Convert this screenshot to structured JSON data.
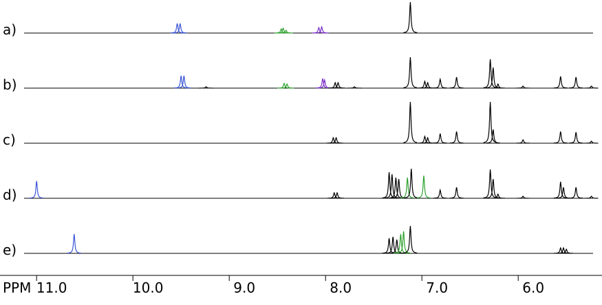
{
  "chart_data": {
    "type": "nmr",
    "xlabel": "PPM",
    "xlim": [
      11.38,
      5.13
    ],
    "xticks": [
      {
        "value": 11,
        "label": "11.0"
      },
      {
        "value": 10,
        "label": "10.0"
      },
      {
        "value": 9,
        "label": "9.0"
      },
      {
        "value": 8,
        "label": "8.0"
      },
      {
        "value": 7,
        "label": "7.0"
      },
      {
        "value": 6,
        "label": "6.0"
      }
    ],
    "ylim": [
      0,
      80
    ],
    "traces": [
      {
        "label": "a)",
        "peaks": [
          {
            "ppm": 9.54,
            "height": 14,
            "color": "#3a55d6"
          },
          {
            "ppm": 9.51,
            "height": 14,
            "color": "#3a55d6"
          },
          {
            "ppm": 8.46,
            "height": 6,
            "color": "#2ea02e"
          },
          {
            "ppm": 8.44,
            "height": 7,
            "color": "#2ea02e"
          },
          {
            "ppm": 8.41,
            "height": 4,
            "color": "#2ea02e"
          },
          {
            "ppm": 8.07,
            "height": 8,
            "color": "#7a2fc8"
          },
          {
            "ppm": 8.04,
            "height": 9,
            "color": "#7a2fc8"
          },
          {
            "ppm": 7.12,
            "height": 45,
            "color": "#000000"
          }
        ]
      },
      {
        "label": "b)",
        "peaks": [
          {
            "ppm": 9.5,
            "height": 18,
            "color": "#3a55d6"
          },
          {
            "ppm": 9.47,
            "height": 18,
            "color": "#3a55d6"
          },
          {
            "ppm": 9.24,
            "height": 2,
            "color": "#000000"
          },
          {
            "ppm": 8.43,
            "height": 7,
            "color": "#2ea02e"
          },
          {
            "ppm": 8.4,
            "height": 6,
            "color": "#2ea02e"
          },
          {
            "ppm": 8.03,
            "height": 14,
            "color": "#7a2fc8"
          },
          {
            "ppm": 8.01,
            "height": 12,
            "color": "#7a2fc8"
          },
          {
            "ppm": 7.9,
            "height": 8,
            "color": "#000000"
          },
          {
            "ppm": 7.87,
            "height": 8,
            "color": "#000000"
          },
          {
            "ppm": 7.7,
            "height": 2,
            "color": "#000000"
          },
          {
            "ppm": 7.12,
            "height": 45,
            "color": "#000000"
          },
          {
            "ppm": 6.97,
            "height": 10,
            "color": "#000000"
          },
          {
            "ppm": 6.94,
            "height": 8,
            "color": "#000000"
          },
          {
            "ppm": 6.81,
            "height": 13,
            "color": "#000000"
          },
          {
            "ppm": 6.64,
            "height": 16,
            "color": "#000000"
          },
          {
            "ppm": 6.29,
            "height": 42,
            "color": "#000000"
          },
          {
            "ppm": 6.26,
            "height": 30,
            "color": "#000000"
          },
          {
            "ppm": 6.21,
            "height": 6,
            "color": "#000000"
          },
          {
            "ppm": 5.95,
            "height": 3,
            "color": "#000000"
          },
          {
            "ppm": 5.56,
            "height": 17,
            "color": "#000000"
          },
          {
            "ppm": 5.4,
            "height": 16,
            "color": "#000000"
          },
          {
            "ppm": 5.24,
            "height": 3,
            "color": "#000000"
          }
        ]
      },
      {
        "label": "c)",
        "peaks": [
          {
            "ppm": 7.92,
            "height": 8,
            "color": "#000000"
          },
          {
            "ppm": 7.89,
            "height": 8,
            "color": "#000000"
          },
          {
            "ppm": 7.12,
            "height": 60,
            "color": "#000000"
          },
          {
            "ppm": 6.97,
            "height": 10,
            "color": "#000000"
          },
          {
            "ppm": 6.94,
            "height": 8,
            "color": "#000000"
          },
          {
            "ppm": 6.81,
            "height": 14,
            "color": "#000000"
          },
          {
            "ppm": 6.64,
            "height": 17,
            "color": "#000000"
          },
          {
            "ppm": 6.29,
            "height": 60,
            "color": "#000000"
          },
          {
            "ppm": 6.26,
            "height": 20,
            "color": "#000000"
          },
          {
            "ppm": 5.95,
            "height": 5,
            "color": "#000000"
          },
          {
            "ppm": 5.56,
            "height": 17,
            "color": "#000000"
          },
          {
            "ppm": 5.4,
            "height": 16,
            "color": "#000000"
          },
          {
            "ppm": 5.24,
            "height": 3,
            "color": "#000000"
          }
        ]
      },
      {
        "label": "d)",
        "peaks": [
          {
            "ppm": 11.0,
            "height": 25,
            "color": "#3a55d6"
          },
          {
            "ppm": 7.91,
            "height": 8,
            "color": "#000000"
          },
          {
            "ppm": 7.88,
            "height": 8,
            "color": "#000000"
          },
          {
            "ppm": 7.34,
            "height": 38,
            "color": "#000000"
          },
          {
            "ppm": 7.31,
            "height": 35,
            "color": "#000000"
          },
          {
            "ppm": 7.27,
            "height": 30,
            "color": "#000000"
          },
          {
            "ppm": 7.24,
            "height": 28,
            "color": "#000000"
          },
          {
            "ppm": 7.15,
            "height": 30,
            "color": "#2ea02e"
          },
          {
            "ppm": 7.11,
            "height": 43,
            "color": "#000000"
          },
          {
            "ppm": 6.98,
            "height": 33,
            "color": "#2ea02e"
          },
          {
            "ppm": 6.81,
            "height": 12,
            "color": "#000000"
          },
          {
            "ppm": 6.64,
            "height": 16,
            "color": "#000000"
          },
          {
            "ppm": 6.29,
            "height": 42,
            "color": "#000000"
          },
          {
            "ppm": 6.26,
            "height": 28,
            "color": "#000000"
          },
          {
            "ppm": 6.21,
            "height": 6,
            "color": "#000000"
          },
          {
            "ppm": 5.95,
            "height": 3,
            "color": "#000000"
          },
          {
            "ppm": 5.56,
            "height": 24,
            "color": "#000000"
          },
          {
            "ppm": 5.53,
            "height": 16,
            "color": "#000000"
          },
          {
            "ppm": 5.4,
            "height": 16,
            "color": "#000000"
          },
          {
            "ppm": 5.24,
            "height": 3,
            "color": "#000000"
          }
        ]
      },
      {
        "label": "e)",
        "peaks": [
          {
            "ppm": 10.61,
            "height": 28,
            "color": "#3a55d6"
          },
          {
            "ppm": 7.34,
            "height": 22,
            "color": "#000000"
          },
          {
            "ppm": 7.3,
            "height": 24,
            "color": "#000000"
          },
          {
            "ppm": 7.26,
            "height": 20,
            "color": "#000000"
          },
          {
            "ppm": 7.22,
            "height": 28,
            "color": "#2ea02e"
          },
          {
            "ppm": 7.19,
            "height": 32,
            "color": "#2ea02e"
          },
          {
            "ppm": 7.12,
            "height": 40,
            "color": "#000000"
          },
          {
            "ppm": 5.56,
            "height": 8,
            "color": "#000000"
          },
          {
            "ppm": 5.53,
            "height": 8,
            "color": "#000000"
          },
          {
            "ppm": 5.5,
            "height": 6,
            "color": "#000000"
          }
        ]
      }
    ]
  }
}
